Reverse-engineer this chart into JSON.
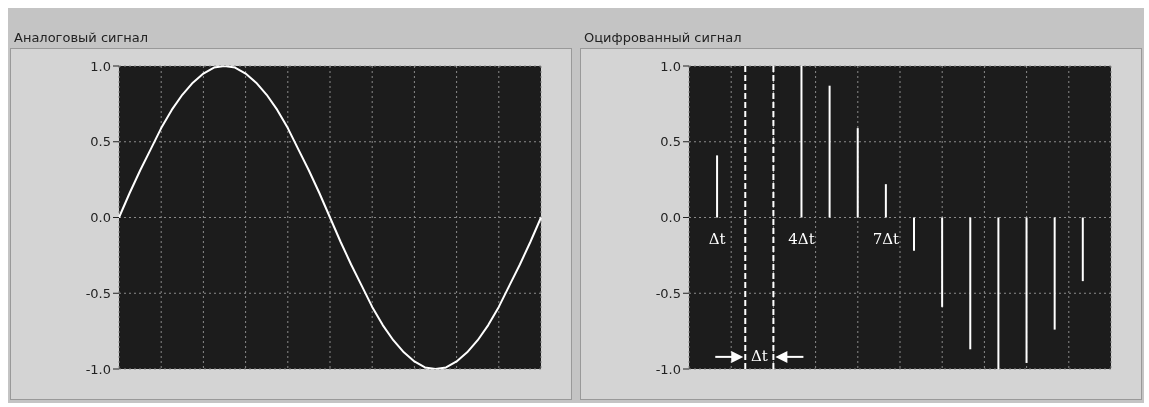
{
  "chart_data": [
    {
      "type": "line",
      "title": "Аналоговый сигнал",
      "color": "#ffffff",
      "categories": [
        null,
        null,
        null,
        null,
        null,
        null,
        null,
        null,
        null,
        null,
        null,
        null,
        null,
        null,
        null,
        null,
        null,
        null,
        null,
        null,
        null,
        null,
        null,
        null,
        null,
        null,
        null,
        null,
        null,
        null,
        null,
        null,
        null,
        null,
        null,
        null,
        null,
        null,
        null,
        null,
        null
      ],
      "values": [
        0,
        0.16,
        0.31,
        0.45,
        0.59,
        0.71,
        0.81,
        0.89,
        0.95,
        0.99,
        1,
        0.99,
        0.95,
        0.89,
        0.81,
        0.71,
        0.59,
        0.45,
        0.31,
        0.16,
        0,
        -0.16,
        -0.31,
        -0.45,
        -0.59,
        -0.71,
        -0.81,
        -0.89,
        -0.95,
        -0.99,
        -1,
        -0.99,
        -0.95,
        -0.89,
        -0.81,
        -0.71,
        -0.59,
        -0.45,
        -0.31,
        -0.16,
        0
      ],
      "ylim": [
        -1,
        1
      ],
      "yticks": [
        {
          "value": -1,
          "label": "-1.0"
        },
        {
          "value": -0.5,
          "label": "-0.5"
        },
        {
          "value": 0,
          "label": "0.0"
        },
        {
          "value": 0.5,
          "label": "0.5"
        },
        {
          "value": 1,
          "label": "1.0"
        }
      ],
      "grid": true,
      "tick_labels": "y"
    },
    {
      "type": "bar",
      "title": "Оцифрованный сигнал",
      "color": "#ffffff",
      "categories": [
        null,
        null,
        null,
        null,
        null,
        null,
        null,
        null,
        null,
        null,
        null,
        null,
        null,
        null
      ],
      "values": [
        0.41,
        null,
        null,
        1,
        0.87,
        0.59,
        0.22,
        -0.22,
        -0.59,
        -0.87,
        -1,
        -0.96,
        -0.74,
        -0.42
      ],
      "ylim": [
        -1,
        1
      ],
      "yticks": [
        {
          "value": -1,
          "label": "-1.0"
        },
        {
          "value": -0.5,
          "label": "-0.5"
        },
        {
          "value": 0,
          "label": "0.0"
        },
        {
          "value": 0.5,
          "label": "0.5"
        },
        {
          "value": 1,
          "label": "1.0"
        }
      ],
      "grid": true,
      "tick_labels": "y",
      "annotations": [
        "Δt",
        "4Δt",
        "7Δt",
        "Δt"
      ]
    }
  ]
}
